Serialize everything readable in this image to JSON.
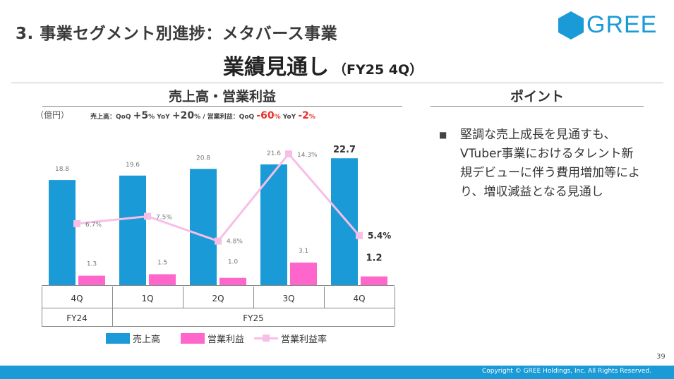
{
  "header": {
    "section_title": "3. 事業セグメント別進捗：メタバース事業",
    "main_title": "業績見通し",
    "main_sub": "（FY25 4Q）"
  },
  "logo": {
    "text": "GREE"
  },
  "chart_panel": {
    "title": "売上高・営業利益",
    "unit": "（億円）",
    "growth": {
      "sales_label": "売上高：QoQ",
      "sales_qoq": "+5",
      "pct": "%",
      "yoy_label": "YoY",
      "sales_yoy": "+20",
      "separator": "/",
      "op_label": "営業利益：QoQ",
      "op_qoq": "-60",
      "op_yoy": "-2"
    }
  },
  "point_panel": {
    "title": "ポイント",
    "bullet_mark": "■",
    "bullet": "堅調な売上成長を見通すも、VTuber事業におけるタレント新規デビューに伴う費用増加等により、増収減益となる見通し"
  },
  "chart_data": {
    "type": "bar",
    "categories": [
      "4Q",
      "1Q",
      "2Q",
      "3Q",
      "4Q"
    ],
    "groups": [
      {
        "label": "FY24",
        "span": [
          0,
          0
        ]
      },
      {
        "label": "FY25",
        "span": [
          1,
          4
        ]
      }
    ],
    "series": [
      {
        "name": "売上高",
        "type": "bar",
        "color": "#1a9ad6",
        "values": [
          18.8,
          19.6,
          20.8,
          21.6,
          22.7
        ],
        "labels": [
          "18.8",
          "19.6",
          "20.8",
          "21.6",
          "22.7"
        ]
      },
      {
        "name": "営業利益",
        "type": "bar",
        "color": "#ff66cc",
        "values": [
          1.3,
          1.5,
          1.0,
          3.1,
          1.2
        ],
        "labels": [
          "1.3",
          "1.5",
          "1.0",
          "3.1",
          "1.2"
        ]
      },
      {
        "name": "営業利益率",
        "type": "line",
        "color": "#f7bfe6",
        "values": [
          6.7,
          7.5,
          4.8,
          14.3,
          5.4
        ],
        "labels": [
          "6.7%",
          "7.5%",
          "4.8%",
          "14.3%",
          "5.4%"
        ]
      }
    ],
    "forecast_index": 4
  },
  "footer": {
    "page_number": "39",
    "copyright": "Copyright © GREE Holdings, Inc. All Rights Reserved."
  },
  "colors": {
    "brand": "#1a9ad6",
    "op_bar": "#ff66cc",
    "op_line": "#f7bfe6",
    "red": "#e8332a"
  }
}
